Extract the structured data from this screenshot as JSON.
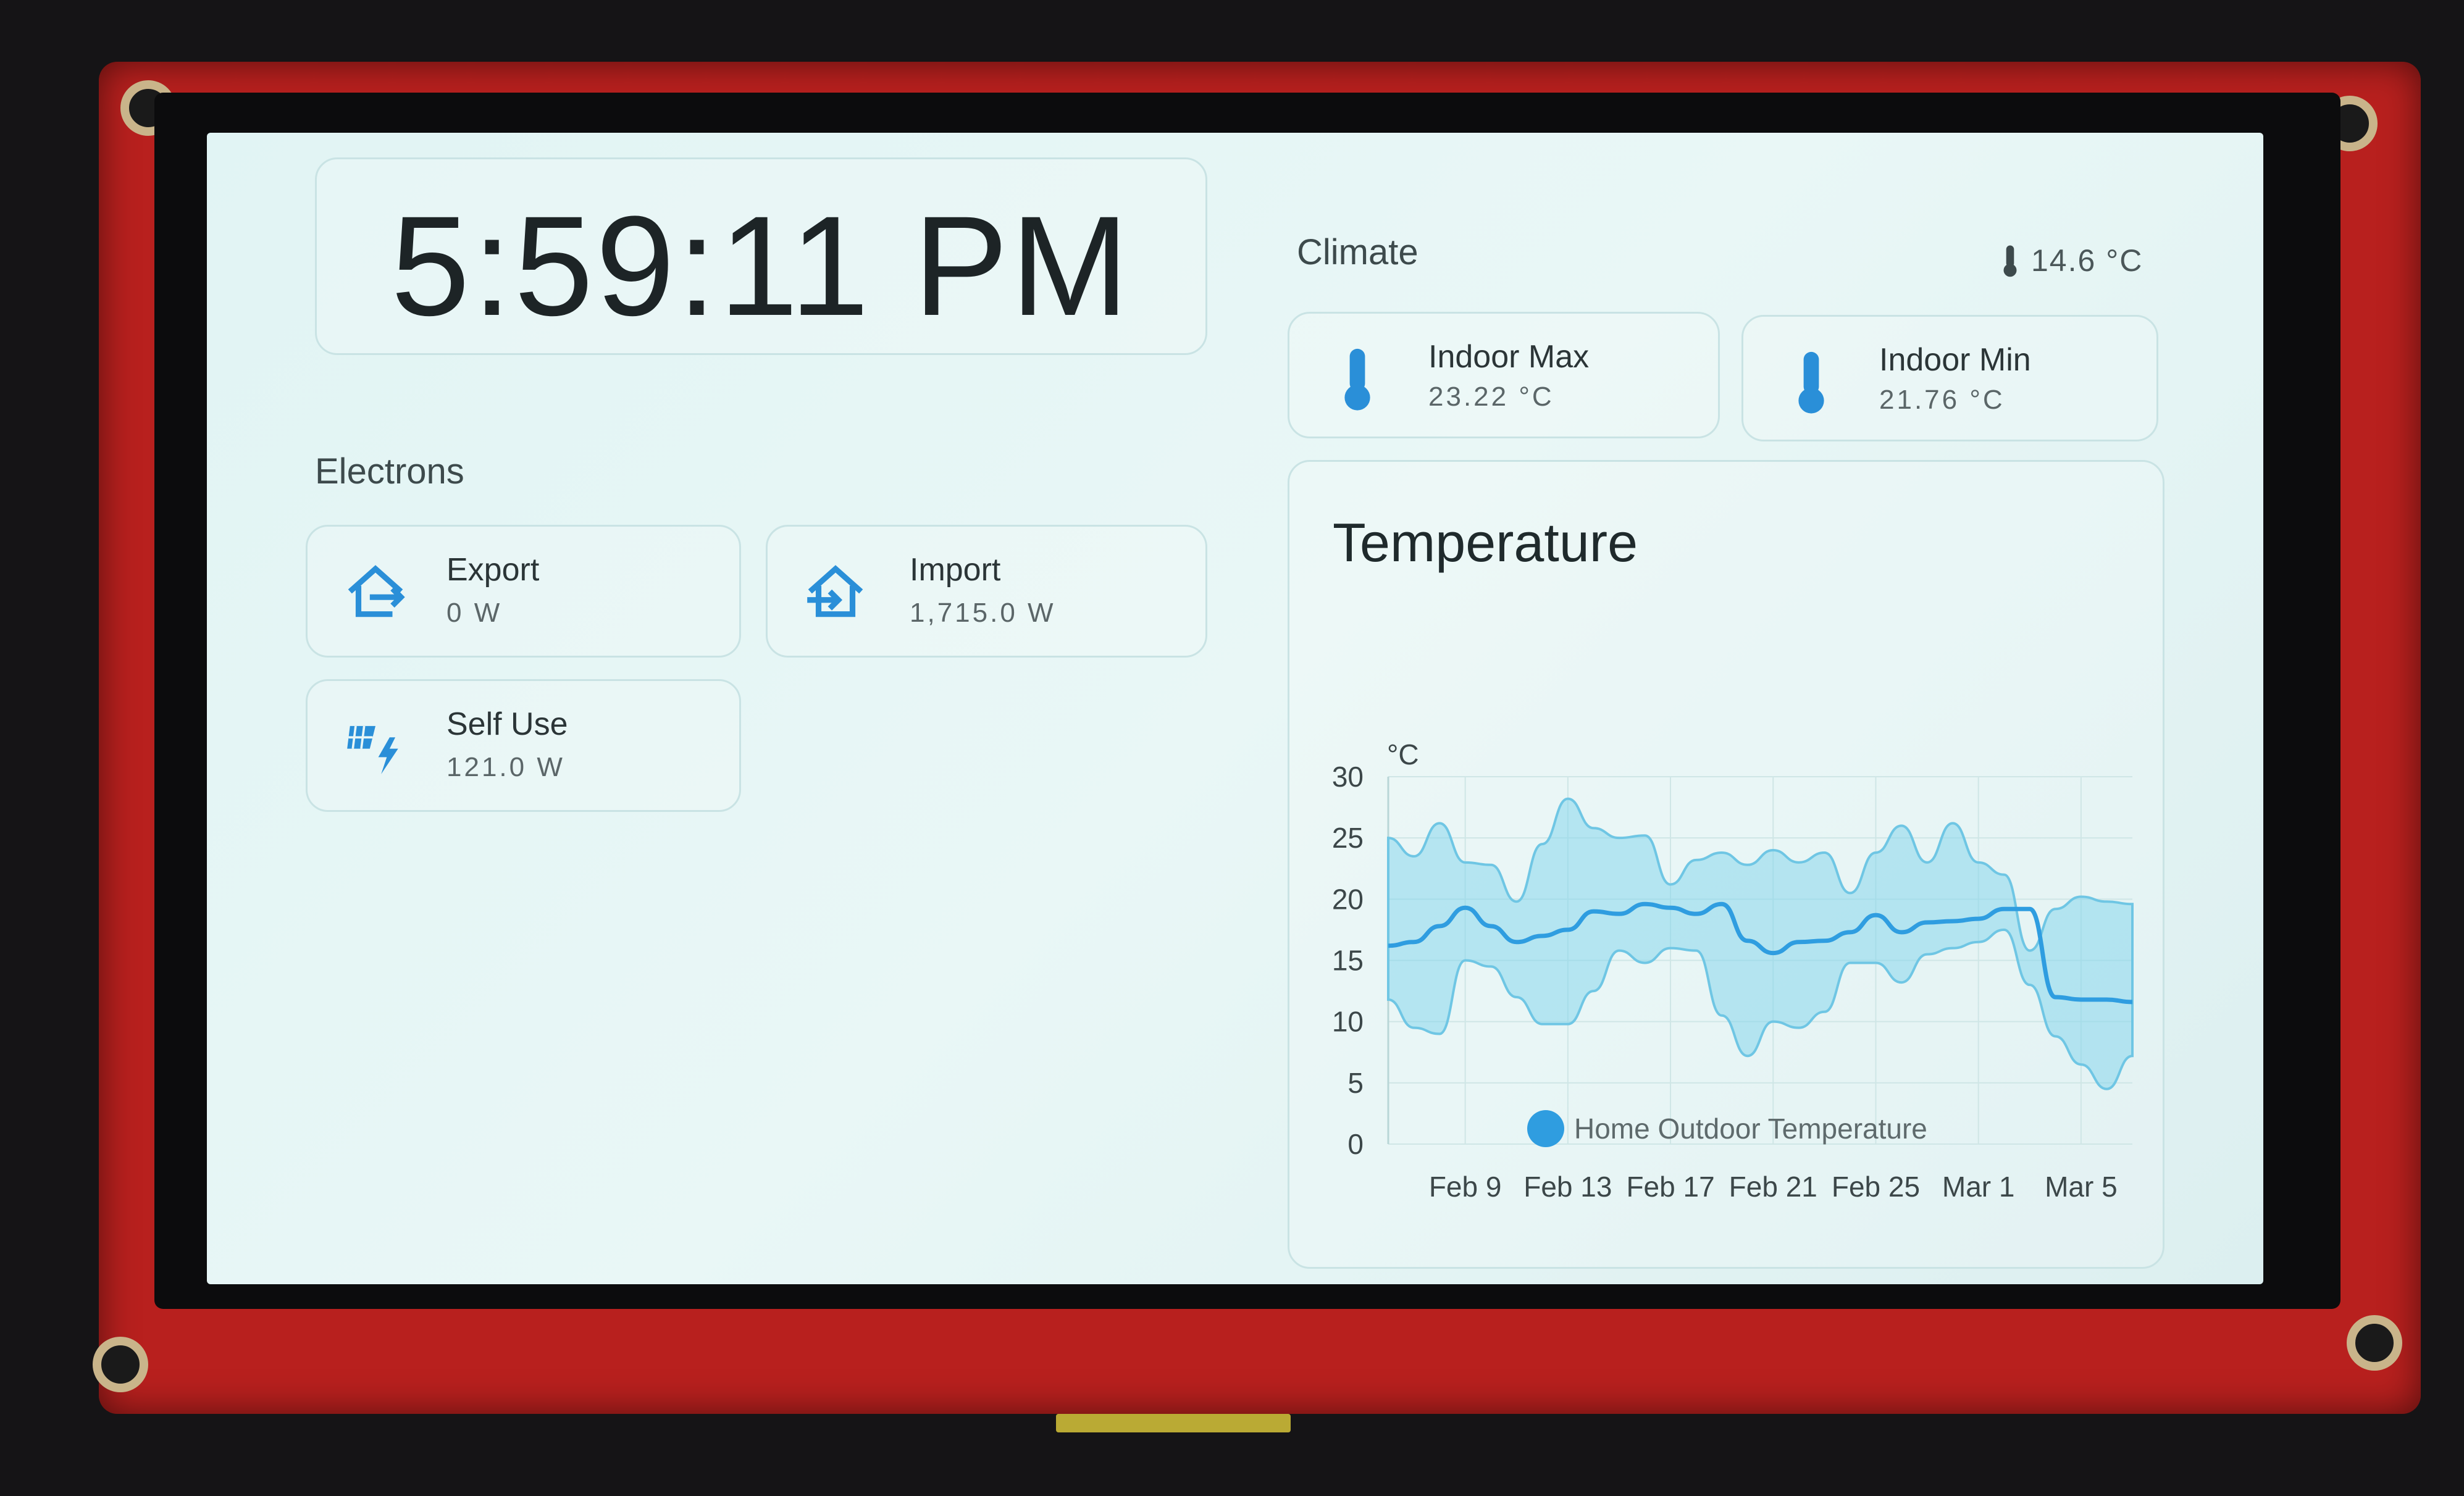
{
  "clock": {
    "time": "5:59:11 PM"
  },
  "electrons": {
    "title": "Electrons",
    "tiles": [
      {
        "name": "Export",
        "value": "0 W",
        "icon": "home-export-icon"
      },
      {
        "name": "Import",
        "value": "1,715.0 W",
        "icon": "home-import-icon"
      },
      {
        "name": "Self Use",
        "value": "121.0 W",
        "icon": "solar-power-icon"
      }
    ]
  },
  "climate": {
    "title": "Climate",
    "outdoor_badge": "14.6 °C",
    "tiles": [
      {
        "name": "Indoor Max",
        "value": "23.22 °C",
        "icon": "thermometer-icon"
      },
      {
        "name": "Indoor Min",
        "value": "21.76 °C",
        "icon": "thermometer-icon"
      }
    ]
  },
  "chart_data": {
    "type": "area",
    "title": "Temperature",
    "ylabel": "°C",
    "ylim": [
      0,
      30
    ],
    "y_ticks": [
      0,
      5,
      10,
      15,
      20,
      25,
      30
    ],
    "x_ticks": [
      "Feb 9",
      "Feb 13",
      "Feb 17",
      "Feb 21",
      "Feb 25",
      "Mar 1",
      "Mar 5"
    ],
    "grid": true,
    "legend": "bottom",
    "x": [
      "Feb 6",
      "Feb 7",
      "Feb 8",
      "Feb 9",
      "Feb 10",
      "Feb 11",
      "Feb 12",
      "Feb 13",
      "Feb 14",
      "Feb 15",
      "Feb 16",
      "Feb 17",
      "Feb 18",
      "Feb 19",
      "Feb 20",
      "Feb 21",
      "Feb 22",
      "Feb 23",
      "Feb 24",
      "Feb 25",
      "Feb 26",
      "Feb 27",
      "Feb 28",
      "Mar 1",
      "Mar 2",
      "Mar 3",
      "Mar 4",
      "Mar 5",
      "Mar 6",
      "Mar 7"
    ],
    "series": [
      {
        "name": "Home Outdoor Temperature",
        "color": "#2f9de0",
        "mean": [
          16.2,
          16.5,
          17.8,
          19.3,
          17.8,
          16.5,
          17.0,
          17.5,
          19.0,
          18.8,
          19.6,
          19.3,
          18.8,
          19.6,
          16.6,
          15.6,
          16.5,
          16.6,
          17.3,
          18.7,
          17.3,
          18.1,
          18.2,
          18.4,
          19.2,
          19.2,
          12.0,
          11.8,
          11.8,
          11.6
        ],
        "max": [
          25.0,
          23.5,
          26.2,
          23.0,
          22.8,
          19.8,
          24.5,
          28.2,
          25.8,
          25.0,
          25.2,
          21.2,
          23.2,
          23.8,
          22.8,
          24.0,
          23.0,
          23.8,
          20.5,
          23.8,
          26.0,
          23.0,
          26.2,
          23.0,
          22.0,
          15.8,
          19.2,
          20.2,
          19.8,
          19.6
        ],
        "min": [
          11.8,
          9.5,
          9.0,
          15.0,
          14.5,
          12.0,
          9.8,
          9.8,
          12.5,
          15.8,
          14.8,
          16.0,
          15.8,
          10.5,
          7.2,
          10.0,
          9.5,
          10.8,
          14.8,
          14.8,
          13.2,
          15.5,
          16.0,
          16.5,
          17.5,
          13.0,
          8.8,
          6.5,
          4.5,
          7.2
        ]
      }
    ]
  }
}
